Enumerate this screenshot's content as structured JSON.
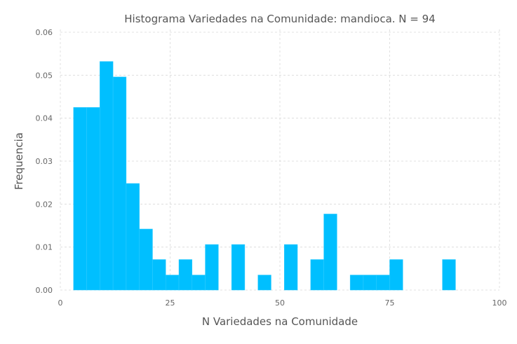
{
  "chart_data": {
    "type": "bar",
    "title": "Histograma Variedades na Comunidade: mandioca. N = 94",
    "xlabel": "N Variedades na Comunidade",
    "ylabel": "Frequencia",
    "xlim": [
      0,
      100
    ],
    "ylim": [
      0,
      0.06
    ],
    "xticks": [
      "0",
      "25",
      "50",
      "75",
      "100"
    ],
    "yticks": [
      "0.00",
      "0.01",
      "0.02",
      "0.03",
      "0.04",
      "0.05",
      "0.06"
    ],
    "grid": true,
    "bar_color": "#00bfff",
    "bin_width": 3,
    "bins": [
      {
        "x0": 3,
        "x1": 6,
        "value": 0.0425
      },
      {
        "x0": 6,
        "x1": 9,
        "value": 0.0425
      },
      {
        "x0": 9,
        "x1": 12,
        "value": 0.0532
      },
      {
        "x0": 12,
        "x1": 15,
        "value": 0.0496
      },
      {
        "x0": 15,
        "x1": 18,
        "value": 0.0248
      },
      {
        "x0": 18,
        "x1": 21,
        "value": 0.0142
      },
      {
        "x0": 21,
        "x1": 24,
        "value": 0.0071
      },
      {
        "x0": 24,
        "x1": 27,
        "value": 0.0035
      },
      {
        "x0": 27,
        "x1": 30,
        "value": 0.0071
      },
      {
        "x0": 30,
        "x1": 33,
        "value": 0.0035
      },
      {
        "x0": 33,
        "x1": 36,
        "value": 0.0106
      },
      {
        "x0": 39,
        "x1": 42,
        "value": 0.0106
      },
      {
        "x0": 45,
        "x1": 48,
        "value": 0.0035
      },
      {
        "x0": 51,
        "x1": 54,
        "value": 0.0106
      },
      {
        "x0": 57,
        "x1": 60,
        "value": 0.0071
      },
      {
        "x0": 60,
        "x1": 63,
        "value": 0.0177
      },
      {
        "x0": 66,
        "x1": 69,
        "value": 0.0035
      },
      {
        "x0": 69,
        "x1": 72,
        "value": 0.0035
      },
      {
        "x0": 72,
        "x1": 75,
        "value": 0.0035
      },
      {
        "x0": 75,
        "x1": 78,
        "value": 0.0071
      },
      {
        "x0": 87,
        "x1": 90,
        "value": 0.0071
      }
    ]
  }
}
